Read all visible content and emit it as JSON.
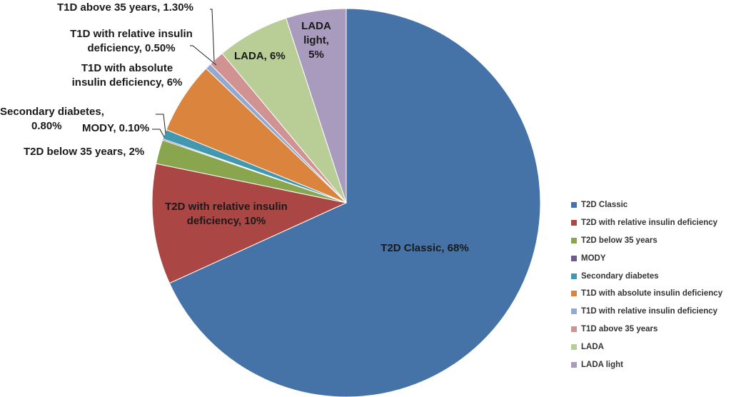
{
  "chart_data": {
    "type": "pie",
    "slices": [
      {
        "name": "T2D Classic",
        "value": 68,
        "label": "T2D Classic, 68%",
        "color": "#4572A7"
      },
      {
        "name": "T2D with relative insulin deficiency",
        "value": 10,
        "label": "T2D with relative insulin deficiency, 10%",
        "color": "#AA4643"
      },
      {
        "name": "T2D below 35 years",
        "value": 2,
        "label": "T2D below 35 years, 2%",
        "color": "#89A54E"
      },
      {
        "name": "MODY",
        "value": 0.1,
        "label": "MODY, 0.10%",
        "color": "#71588F"
      },
      {
        "name": "Secondary diabetes",
        "value": 0.8,
        "label": "Secondary diabetes, 0.80%",
        "color": "#4198AF"
      },
      {
        "name": "T1D with absolute insulin deficiency",
        "value": 6,
        "label": "T1D with absolute insulin deficiency, 6%",
        "color": "#DB843D"
      },
      {
        "name": "T1D with relative insulin deficiency",
        "value": 0.5,
        "label": "T1D with relative insulin deficiency, 0.50%",
        "color": "#93A9CF"
      },
      {
        "name": "T1D above 35 years",
        "value": 1.3,
        "label": "T1D above 35 years, 1.30%",
        "color": "#D19392"
      },
      {
        "name": "LADA",
        "value": 6,
        "label": "LADA, 6%",
        "color": "#B9CD96"
      },
      {
        "name": "LADA light",
        "value": 5,
        "label": "LADA light, 5%",
        "color": "#A99BBD"
      }
    ],
    "legend_position": "right"
  },
  "labels": {
    "t2d_classic": "T2D Classic, 68%",
    "t2d_relative_line1": "T2D with relative insulin",
    "t2d_relative_line2": "deficiency, 10%",
    "t2d_below35": "T2D below 35 years, 2%",
    "mody": "MODY, 0.10%",
    "secondary_line1": "Secondary diabetes,",
    "secondary_line2": "0.80%",
    "t1d_absolute_line1": "T1D with absolute",
    "t1d_absolute_line2": "insulin deficiency, 6%",
    "t1d_relative_line1": "T1D with relative insulin",
    "t1d_relative_line2": "deficiency, 0.50%",
    "t1d_above35": "T1D above 35 years, 1.30%",
    "lada": "LADA, 6%",
    "lada_light_line1": "LADA",
    "lada_light_line2": "light,",
    "lada_light_line3": "5%"
  },
  "legend": [
    {
      "label": "T2D Classic",
      "color": "#4572A7"
    },
    {
      "label": "T2D with relative insulin deficiency",
      "color": "#AA4643"
    },
    {
      "label": "T2D below 35 years",
      "color": "#89A54E"
    },
    {
      "label": "MODY",
      "color": "#71588F"
    },
    {
      "label": "Secondary diabetes",
      "color": "#4198AF"
    },
    {
      "label": "T1D with absolute insulin deficiency",
      "color": "#DB843D"
    },
    {
      "label": "T1D with relative insulin deficiency",
      "color": "#93A9CF"
    },
    {
      "label": "T1D above 35 years",
      "color": "#D19392"
    },
    {
      "label": "LADA",
      "color": "#B9CD96"
    },
    {
      "label": "LADA light",
      "color": "#A99BBD"
    }
  ]
}
